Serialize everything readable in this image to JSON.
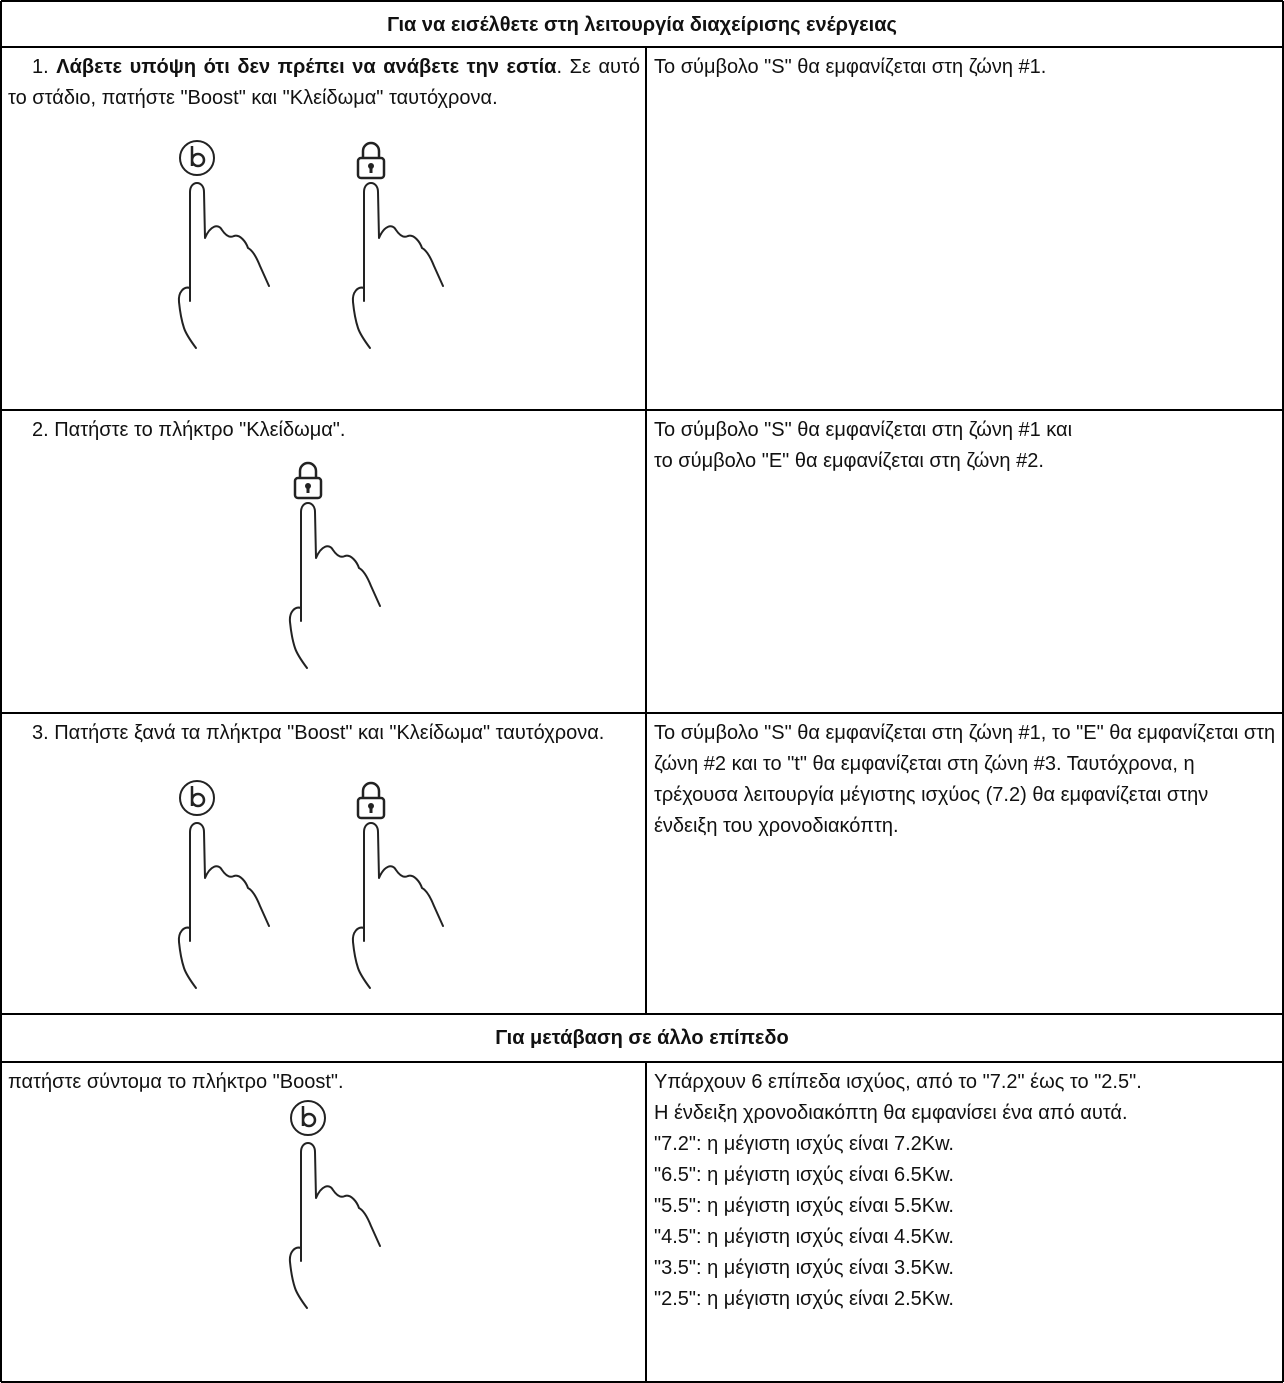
{
  "sections": [
    {
      "heading": "Για να εισέλθετε στη λειτουργία διαχείρισης ενέργειας",
      "rows": [
        {
          "left_number": "1.",
          "left_bold": "Λάβετε υπόψη ότι δεν πρέπει να ανάβετε την εστία",
          "left_text": ".  Σε αυτό το στάδιο, πατήστε \"Boost\" και \"Κλείδωμα\" ταυτόχρονα.",
          "right": [
            "Το σύμβολο \"S\" θα εμφανίζεται στη ζώνη #1."
          ]
        },
        {
          "left_text": "2. Πατήστε το πλήκτρο \"Κλείδωμα\".",
          "right": [
            "Το σύμβολο \"S\" θα εμφανίζεται στη ζώνη #1 και",
            "το σύμβολο \"E\" θα εμφανίζεται στη ζώνη #2."
          ]
        },
        {
          "left_text": "3. Πατήστε ξανά τα πλήκτρα \"Boost\" και \"Κλείδωμα\" ταυτόχρονα.",
          "right": [
            "Το σύμβολο \"S\" θα εμφανίζεται στη ζώνη #1, το \"E\" θα εμφανίζεται στη ζώνη #2 και το \"t\" θα εμφανίζεται στη ζώνη #3. Ταυτόχρονα, η τρέχουσα λειτουργία μέγιστης ισχύος (7.2) θα εμφανίζεται στην ένδειξη του χρονοδιακόπτη."
          ]
        }
      ]
    },
    {
      "heading": "Για μετάβαση σε άλλο επίπεδο",
      "rows": [
        {
          "left_text": "πατήστε σύντομα το πλήκτρο \"Boost\".",
          "right": [
            "Υπάρχουν 6 επίπεδα ισχύος, από το \"7.2\" έως το \"2.5\".",
            "Η ένδειξη χρονοδιακόπτη θα εμφανίσει ένα από αυτά.",
            "\"7.2\": η μέγιστη ισχύς είναι 7.2Kw.",
            "\"6.5\": η μέγιστη ισχύς είναι 6.5Kw.",
            "\"5.5\": η μέγιστη ισχύς είναι 5.5Kw.",
            "\"4.5\": η μέγιστη ισχύς είναι 4.5Kw.",
            "\"3.5\": η μέγιστη ισχύς είναι 3.5Kw.",
            "\"2.5\": η μέγιστη ισχύς είναι 2.5Kw."
          ]
        }
      ]
    }
  ]
}
